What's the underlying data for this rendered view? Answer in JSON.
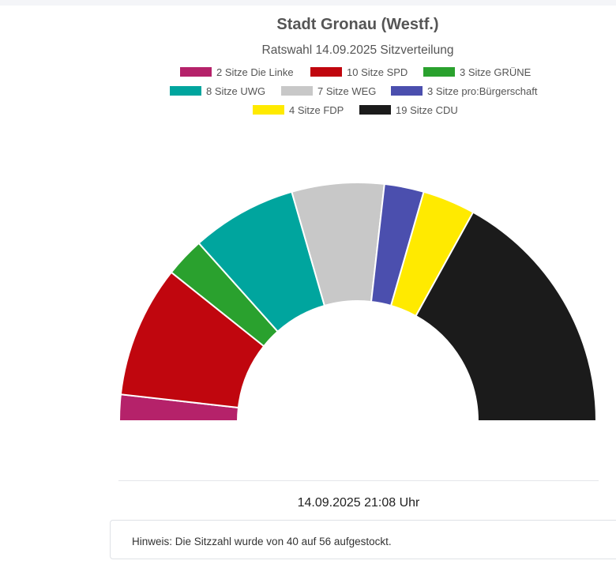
{
  "chart_data": {
    "type": "parliament",
    "title": "Stadt Gronau (Westf.)",
    "subtitle": "Ratswahl 14.09.2025 Sitzverteilung",
    "total_seats": 56,
    "series": [
      {
        "name": "Die Linke",
        "seats": 2,
        "legend_label": "2 Sitze Die Linke",
        "color": "#b5226a"
      },
      {
        "name": "SPD",
        "seats": 10,
        "legend_label": "10 Sitze SPD",
        "color": "#c0060e"
      },
      {
        "name": "GRÜNE",
        "seats": 3,
        "legend_label": "3 Sitze GRÜNE",
        "color": "#2aa12e"
      },
      {
        "name": "UWG",
        "seats": 8,
        "legend_label": "8 Sitze UWG",
        "color": "#00a59e"
      },
      {
        "name": "WEG",
        "seats": 7,
        "legend_label": "7 Sitze WEG",
        "color": "#c8c8c8"
      },
      {
        "name": "pro:Bürgerschaft",
        "seats": 3,
        "legend_label": "3 Sitze pro:Bürgerschaft",
        "color": "#4b4fae"
      },
      {
        "name": "FDP",
        "seats": 4,
        "legend_label": "4 Sitze FDP",
        "color": "#ffea00"
      },
      {
        "name": "CDU",
        "seats": 19,
        "legend_label": "19 Sitze CDU",
        "color": "#1b1b1b"
      }
    ]
  },
  "footer": {
    "timestamp": "14.09.2025 21:08 Uhr",
    "note": "Hinweis: Die Sitzzahl wurde von 40 auf 56 aufgestockt."
  }
}
